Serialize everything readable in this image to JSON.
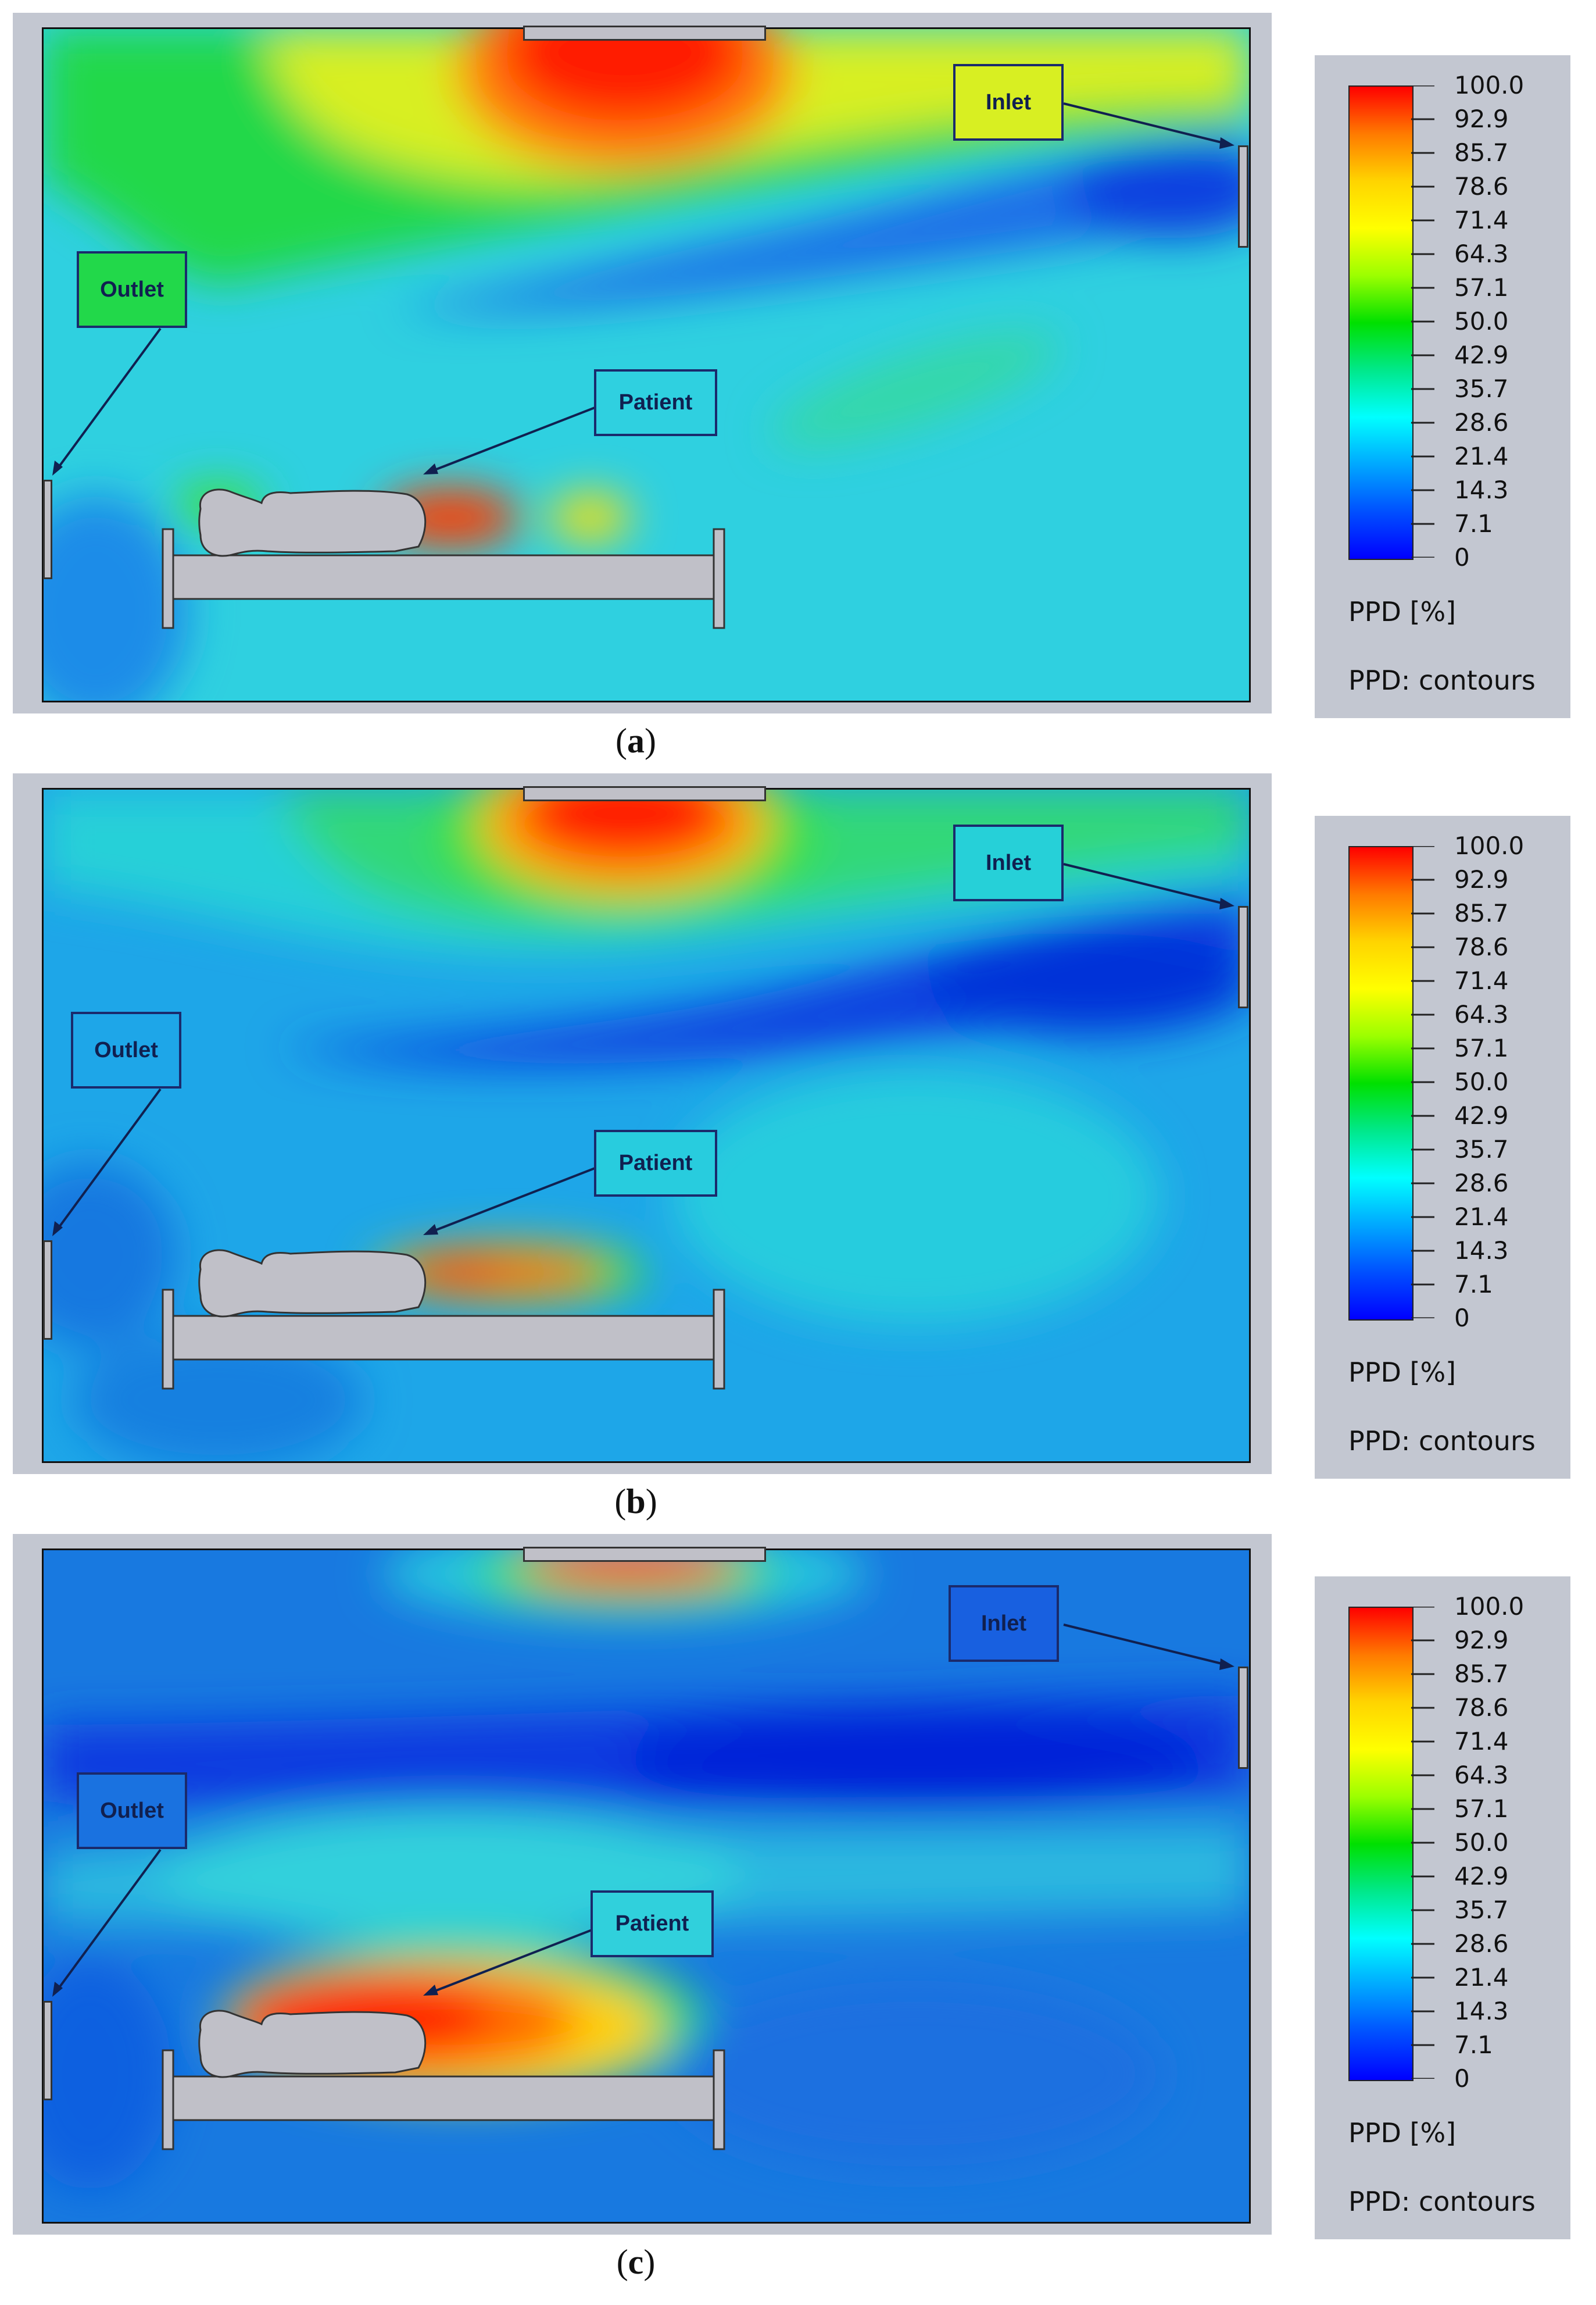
{
  "panels": [
    {
      "id": "a",
      "caption_letter": "a",
      "inlet_label": "Inlet",
      "outlet_label": "Outlet",
      "patient_label": "Patient",
      "background_color": "#2fd0e0"
    },
    {
      "id": "b",
      "caption_letter": "b",
      "inlet_label": "Inlet",
      "outlet_label": "Outlet",
      "patient_label": "Patient",
      "background_color": "#1ea6e8"
    },
    {
      "id": "c",
      "caption_letter": "c",
      "inlet_label": "Inlet",
      "outlet_label": "Outlet",
      "patient_label": "Patient",
      "background_color": "#1879e0"
    }
  ],
  "legend": {
    "ticks": [
      "100.0",
      "92.9",
      "85.7",
      "78.6",
      "71.4",
      "64.3",
      "57.1",
      "50.0",
      "42.9",
      "35.7",
      "28.6",
      "21.4",
      "14.3",
      "7.1",
      "0"
    ],
    "unit_label": "PPD [%]",
    "kind_label": "PPD: contours",
    "colors": [
      "#ff0000",
      "#ff7a00",
      "#ffd400",
      "#ffff00",
      "#9cff00",
      "#00e000",
      "#00e88a",
      "#00ffff",
      "#00a8ff",
      "#0050ff",
      "#0000ff"
    ]
  },
  "colors": {
    "frame": "#c3c7d1",
    "label_border": "#1a2a6c",
    "furniture": "#c0c0c8"
  }
}
